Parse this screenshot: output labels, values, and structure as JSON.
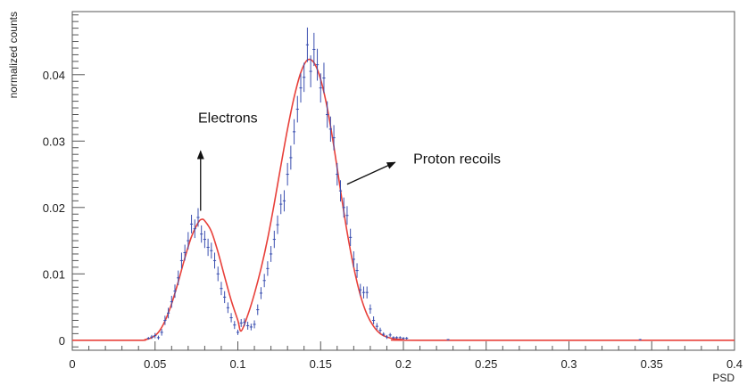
{
  "chart_data": {
    "type": "scatter",
    "xlabel": "PSD",
    "ylabel": "normalized counts",
    "xlim": [
      0,
      0.4
    ],
    "ylim": [
      -0.0015,
      0.0495
    ],
    "x_ticks": [
      {
        "value": 0,
        "label": "0"
      },
      {
        "value": 0.05,
        "label": "0.05"
      },
      {
        "value": 0.1,
        "label": "0.1"
      },
      {
        "value": 0.15,
        "label": "0.15"
      },
      {
        "value": 0.2,
        "label": "0.2"
      },
      {
        "value": 0.25,
        "label": "0.25"
      },
      {
        "value": 0.3,
        "label": "0.3"
      },
      {
        "value": 0.35,
        "label": "0.35"
      },
      {
        "value": 0.4,
        "label": "0.4"
      }
    ],
    "y_ticks": [
      {
        "value": 0,
        "label": "0"
      },
      {
        "value": 0.01,
        "label": "0.01"
      },
      {
        "value": 0.02,
        "label": "0.02"
      },
      {
        "value": 0.03,
        "label": "0.03"
      },
      {
        "value": 0.04,
        "label": "0.04"
      }
    ],
    "grid": false,
    "colors": {
      "data": "#3a4fb0",
      "fit": "#e8403a",
      "frame": "#555555"
    },
    "series": [
      {
        "kind": "data-with-error-bars",
        "x": [
          0.046,
          0.048,
          0.05,
          0.052,
          0.054,
          0.056,
          0.058,
          0.06,
          0.062,
          0.064,
          0.066,
          0.068,
          0.07,
          0.072,
          0.074,
          0.076,
          0.078,
          0.08,
          0.082,
          0.084,
          0.086,
          0.088,
          0.09,
          0.092,
          0.094,
          0.096,
          0.098,
          0.1,
          0.102,
          0.104,
          0.106,
          0.108,
          0.11,
          0.112,
          0.114,
          0.116,
          0.118,
          0.12,
          0.122,
          0.124,
          0.126,
          0.128,
          0.13,
          0.132,
          0.134,
          0.136,
          0.138,
          0.14,
          0.142,
          0.144,
          0.146,
          0.148,
          0.15,
          0.152,
          0.154,
          0.156,
          0.158,
          0.16,
          0.162,
          0.164,
          0.166,
          0.168,
          0.17,
          0.172,
          0.174,
          0.176,
          0.178,
          0.18,
          0.182,
          0.184,
          0.186,
          0.188,
          0.19,
          0.192,
          0.194,
          0.196,
          0.198,
          0.2,
          0.202,
          0.227,
          0.343
        ],
        "y": [
          0.0003,
          0.0005,
          0.0007,
          0.0004,
          0.0012,
          0.003,
          0.0041,
          0.0058,
          0.0074,
          0.0094,
          0.012,
          0.0132,
          0.015,
          0.0175,
          0.0168,
          0.0185,
          0.016,
          0.0152,
          0.014,
          0.0135,
          0.012,
          0.01,
          0.0078,
          0.0065,
          0.0049,
          0.0034,
          0.0023,
          0.0012,
          0.0026,
          0.0027,
          0.0022,
          0.002,
          0.0024,
          0.0046,
          0.0071,
          0.009,
          0.0108,
          0.013,
          0.0152,
          0.0174,
          0.0205,
          0.021,
          0.025,
          0.0275,
          0.0314,
          0.0348,
          0.038,
          0.0396,
          0.0445,
          0.0405,
          0.0438,
          0.0415,
          0.038,
          0.0395,
          0.034,
          0.0318,
          0.0305,
          0.025,
          0.0225,
          0.02,
          0.0188,
          0.0155,
          0.0122,
          0.0105,
          0.0076,
          0.0072,
          0.0072,
          0.0047,
          0.003,
          0.0021,
          0.0015,
          0.0009,
          0.0005,
          0.0008,
          0.0004,
          0.0004,
          0.0004,
          0.0003,
          0.0003,
          0.0001,
          0.0001
        ],
        "yerr": [
          0.0002,
          0.0003,
          0.0004,
          0.0003,
          0.0005,
          0.0007,
          0.0008,
          0.0009,
          0.001,
          0.0011,
          0.0012,
          0.0012,
          0.0013,
          0.0014,
          0.0014,
          0.0014,
          0.0013,
          0.0013,
          0.0013,
          0.0012,
          0.0012,
          0.0011,
          0.001,
          0.0009,
          0.0008,
          0.0007,
          0.0006,
          0.0004,
          0.0006,
          0.0006,
          0.0006,
          0.0005,
          0.0006,
          0.0008,
          0.0009,
          0.001,
          0.0011,
          0.0012,
          0.0013,
          0.0014,
          0.0015,
          0.0016,
          0.0017,
          0.0018,
          0.0019,
          0.002,
          0.0022,
          0.0022,
          0.0026,
          0.0024,
          0.0025,
          0.0024,
          0.0022,
          0.0023,
          0.002,
          0.0019,
          0.0019,
          0.0017,
          0.0016,
          0.0015,
          0.0014,
          0.0013,
          0.0012,
          0.0011,
          0.0009,
          0.0009,
          0.0009,
          0.0007,
          0.0006,
          0.0005,
          0.0004,
          0.0003,
          0.0003,
          0.0003,
          0.0002,
          0.0002,
          0.0002,
          0.0002,
          0.0002,
          0.0001,
          0.0001
        ]
      },
      {
        "kind": "fit-curve",
        "x": [
          0,
          0.04,
          0.044,
          0.048,
          0.052,
          0.056,
          0.06,
          0.064,
          0.068,
          0.072,
          0.076,
          0.078,
          0.08,
          0.084,
          0.088,
          0.092,
          0.096,
          0.1,
          0.102,
          0.106,
          0.11,
          0.114,
          0.118,
          0.122,
          0.126,
          0.13,
          0.134,
          0.138,
          0.142,
          0.146,
          0.15,
          0.154,
          0.158,
          0.162,
          0.166,
          0.17,
          0.174,
          0.178,
          0.182,
          0.186,
          0.19,
          0.195,
          0.2,
          0.21,
          0.4
        ],
        "y": [
          0,
          0,
          0.0001,
          0.0004,
          0.0012,
          0.0029,
          0.0055,
          0.0088,
          0.0124,
          0.0156,
          0.0177,
          0.0182,
          0.018,
          0.0164,
          0.0133,
          0.0096,
          0.006,
          0.003,
          0.0014,
          0.0038,
          0.007,
          0.0108,
          0.0153,
          0.0206,
          0.0263,
          0.0318,
          0.0366,
          0.0403,
          0.0422,
          0.0418,
          0.0393,
          0.035,
          0.0292,
          0.0226,
          0.0163,
          0.011,
          0.0068,
          0.0039,
          0.0021,
          0.001,
          0.0005,
          0.0002,
          0.0001,
          0,
          0
        ]
      }
    ],
    "annotations": [
      {
        "text": "Electrons",
        "x": 0.076,
        "y": 0.0328,
        "arrow_from": [
          0.0775,
          0.0195
        ],
        "arrow_to": [
          0.0775,
          0.0285
        ]
      },
      {
        "text": "Proton recoils",
        "x": 0.206,
        "y": 0.0266,
        "arrow_from": [
          0.166,
          0.0235
        ],
        "arrow_to": [
          0.195,
          0.0268
        ]
      }
    ]
  }
}
